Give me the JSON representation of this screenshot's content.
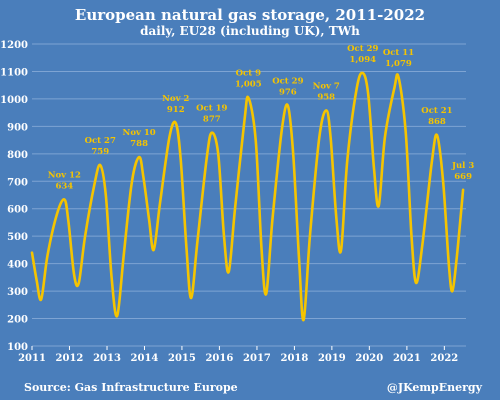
{
  "chart_data": {
    "type": "line",
    "title": "European natural gas storage, 2011-2022",
    "subtitle": "daily, EU28 (including UK), TWh",
    "x_ticks": [
      "2011",
      "2012",
      "2013",
      "2014",
      "2015",
      "2016",
      "2017",
      "2018",
      "2019",
      "2020",
      "2021",
      "2022"
    ],
    "y_ticks": [
      "100",
      "200",
      "300",
      "400",
      "500",
      "600",
      "700",
      "800",
      "900",
      "1000",
      "1100",
      "1200"
    ],
    "ylim": [
      100,
      1200
    ],
    "xlim": [
      "2011-01-01",
      "2022-07-31"
    ],
    "grid": "horizontal",
    "line_color": "#f5c400",
    "series": [
      {
        "values": [
          [
            "2011-01-01",
            440
          ],
          [
            "2011-02-15",
            340
          ],
          [
            "2011-04-01",
            270
          ],
          [
            "2011-06-01",
            430
          ],
          [
            "2011-09-01",
            580
          ],
          [
            "2011-11-12",
            634
          ],
          [
            "2011-12-20",
            560
          ],
          [
            "2012-02-15",
            360
          ],
          [
            "2012-04-01",
            330
          ],
          [
            "2012-06-01",
            500
          ],
          [
            "2012-09-01",
            690
          ],
          [
            "2012-10-27",
            759
          ],
          [
            "2012-12-20",
            650
          ],
          [
            "2013-02-15",
            350
          ],
          [
            "2013-04-10",
            210
          ],
          [
            "2013-06-15",
            440
          ],
          [
            "2013-09-01",
            700
          ],
          [
            "2013-11-10",
            788
          ],
          [
            "2013-12-20",
            720
          ],
          [
            "2014-02-15",
            560
          ],
          [
            "2014-04-01",
            450
          ],
          [
            "2014-06-01",
            620
          ],
          [
            "2014-09-01",
            860
          ],
          [
            "2014-11-02",
            912
          ],
          [
            "2014-12-20",
            780
          ],
          [
            "2015-02-15",
            450
          ],
          [
            "2015-04-01",
            275
          ],
          [
            "2015-06-01",
            480
          ],
          [
            "2015-09-01",
            790
          ],
          [
            "2015-10-19",
            877
          ],
          [
            "2015-12-20",
            800
          ],
          [
            "2016-02-15",
            500
          ],
          [
            "2016-04-01",
            370
          ],
          [
            "2016-06-01",
            600
          ],
          [
            "2016-09-01",
            920
          ],
          [
            "2016-10-09",
            1005
          ],
          [
            "2016-12-20",
            850
          ],
          [
            "2017-02-15",
            450
          ],
          [
            "2017-04-01",
            290
          ],
          [
            "2017-06-01",
            560
          ],
          [
            "2017-09-01",
            890
          ],
          [
            "2017-10-29",
            976
          ],
          [
            "2017-12-20",
            800
          ],
          [
            "2018-02-15",
            420
          ],
          [
            "2018-04-01",
            195
          ],
          [
            "2018-06-01",
            500
          ],
          [
            "2018-09-01",
            860
          ],
          [
            "2018-11-07",
            958
          ],
          [
            "2018-12-20",
            860
          ],
          [
            "2019-02-15",
            560
          ],
          [
            "2019-04-01",
            450
          ],
          [
            "2019-06-01",
            780
          ],
          [
            "2019-09-01",
            1040
          ],
          [
            "2019-10-29",
            1094
          ],
          [
            "2019-12-20",
            1020
          ],
          [
            "2020-02-15",
            750
          ],
          [
            "2020-04-01",
            610
          ],
          [
            "2020-06-01",
            860
          ],
          [
            "2020-09-01",
            1040
          ],
          [
            "2020-10-11",
            1079
          ],
          [
            "2020-12-20",
            880
          ],
          [
            "2021-02-15",
            500
          ],
          [
            "2021-04-01",
            330
          ],
          [
            "2021-06-01",
            470
          ],
          [
            "2021-09-01",
            770
          ],
          [
            "2021-10-21",
            868
          ],
          [
            "2021-12-20",
            700
          ],
          [
            "2022-02-15",
            390
          ],
          [
            "2022-03-20",
            300
          ],
          [
            "2022-05-01",
            420
          ],
          [
            "2022-07-03",
            669
          ]
        ]
      }
    ],
    "annotations": [
      {
        "date": "2011-11-12",
        "value": 634,
        "label_date": "Nov 12",
        "label_value": "634"
      },
      {
        "date": "2012-10-27",
        "value": 759,
        "label_date": "Oct 27",
        "label_value": "759"
      },
      {
        "date": "2013-11-10",
        "value": 788,
        "label_date": "Nov 10",
        "label_value": "788"
      },
      {
        "date": "2014-11-02",
        "value": 912,
        "label_date": "Nov 2",
        "label_value": "912"
      },
      {
        "date": "2015-10-19",
        "value": 877,
        "label_date": "Oct 19",
        "label_value": "877"
      },
      {
        "date": "2016-10-09",
        "value": 1005,
        "label_date": "Oct 9",
        "label_value": "1,005"
      },
      {
        "date": "2017-10-29",
        "value": 976,
        "label_date": "Oct 29",
        "label_value": "976"
      },
      {
        "date": "2018-11-07",
        "value": 958,
        "label_date": "Nov 7",
        "label_value": "958"
      },
      {
        "date": "2019-10-29",
        "value": 1094,
        "label_date": "Oct 29",
        "label_value": "1,094"
      },
      {
        "date": "2020-10-11",
        "value": 1079,
        "label_date": "Oct 11",
        "label_value": "1,079"
      },
      {
        "date": "2021-10-21",
        "value": 868,
        "label_date": "Oct 21",
        "label_value": "868"
      },
      {
        "date": "2022-07-03",
        "value": 669,
        "label_date": "Jul 3",
        "label_value": "669"
      }
    ]
  },
  "footer": {
    "source": "Source: Gas Infrastructure Europe",
    "credit": "@JKempEnergy"
  },
  "colors": {
    "background": "#4a7ebb",
    "line": "#f5c400",
    "annotation": "#f5c400",
    "text": "#ffffff",
    "grid": "#7ea4d3"
  }
}
